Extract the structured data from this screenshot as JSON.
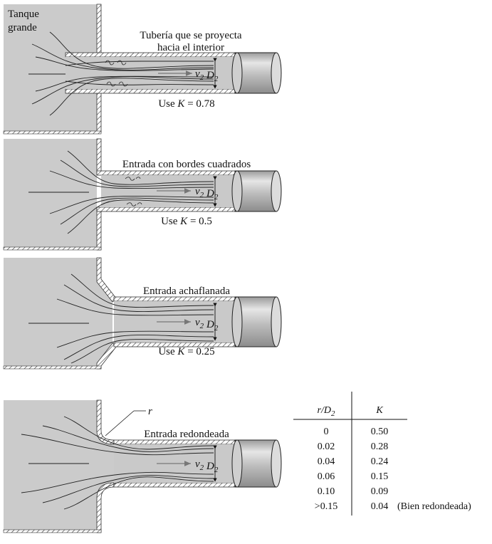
{
  "tank_label": [
    "Tanque",
    "grande"
  ],
  "panels": [
    {
      "id": "projecting",
      "caption_lines": [
        "Tubería que se proyecta",
        "hacia el interior"
      ],
      "k_prefix": "Use ",
      "k_symbol": "K",
      "k_text": " = 0.78"
    },
    {
      "id": "square",
      "caption_lines": [
        "Entrada con bordes cuadrados"
      ],
      "k_prefix": "Use ",
      "k_symbol": "K",
      "k_text": " = 0.5"
    },
    {
      "id": "chamfered",
      "caption_lines": [
        "Entrada achaflanada"
      ],
      "k_prefix": "Use ",
      "k_symbol": "K",
      "k_text": " = 0.25"
    },
    {
      "id": "rounded",
      "caption_lines": [
        "Entrada redondeada"
      ],
      "k_prefix": "",
      "k_symbol": "",
      "k_text": ""
    }
  ],
  "velocity_symbol": "v",
  "diameter_symbol": "D",
  "subscript": "2",
  "radius_symbol": "r",
  "table": {
    "col1_header": "r/D",
    "col1_header_sub": "2",
    "col2_header": "K",
    "rows": [
      {
        "r_d": "0",
        "k": "0.50",
        "note": ""
      },
      {
        "r_d": "0.02",
        "k": "0.28",
        "note": ""
      },
      {
        "r_d": "0.04",
        "k": "0.24",
        "note": ""
      },
      {
        "r_d": "0.06",
        "k": "0.15",
        "note": ""
      },
      {
        "r_d": "0.10",
        "k": "0.09",
        "note": ""
      },
      {
        "r_d": ">0.15",
        "k": "0.04",
        "note": "(Bien redondeada)"
      }
    ]
  },
  "colors": {
    "tank_fill": "#cbcbcb",
    "pipe_fill": "#c4c4c4",
    "wall_hatch": "#333333",
    "streamline": "#222222",
    "arrow": "#777777"
  }
}
